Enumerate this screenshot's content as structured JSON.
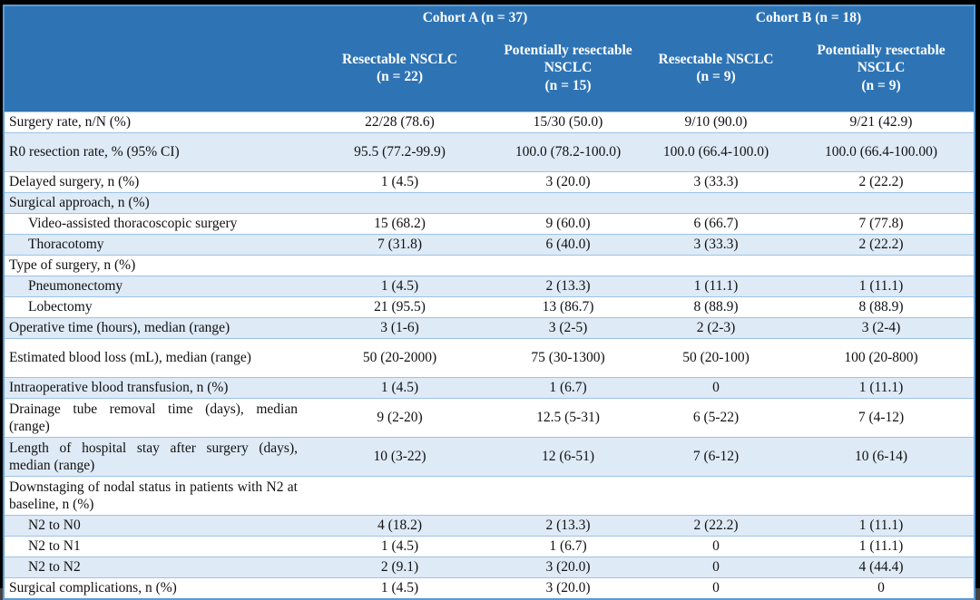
{
  "colors": {
    "header_bg": "#2E74B5",
    "row_alt_bg": "#DEEAF6",
    "row_bg": "#FFFFFF",
    "grid_line": "#9DC3E6",
    "outer_border": "#5B9BD5",
    "frame": "#000000",
    "header_text": "#FFFFFF",
    "body_text": "#111111"
  },
  "table": {
    "cohorts": [
      {
        "label": "Cohort A (n = 37)"
      },
      {
        "label": "Cohort B (n = 18)"
      }
    ],
    "columns": [
      {
        "name": "Resectable NSCLC",
        "n": "(n = 22)"
      },
      {
        "name": "Potentially resectable NSCLC",
        "n": "(n = 15)"
      },
      {
        "name": "Resectable NSCLC",
        "n": "(n = 9)"
      },
      {
        "name": "Potentially resectable NSCLC",
        "n": "(n = 9)"
      }
    ],
    "rows": [
      {
        "label": "Surgery rate, n/N (%)",
        "indent": false,
        "tall": false,
        "values": [
          "22/28 (78.6)",
          "15/30 (50.0)",
          "9/10 (90.0)",
          "9/21 (42.9)"
        ]
      },
      {
        "label": "R0 resection rate, % (95% CI)",
        "indent": false,
        "tall": true,
        "values": [
          "95.5 (77.2-99.9)",
          "100.0 (78.2-100.0)",
          "100.0 (66.4-100.0)",
          "100.0 (66.4-100.00)"
        ]
      },
      {
        "label": "Delayed surgery, n (%)",
        "indent": false,
        "tall": false,
        "values": [
          "1 (4.5)",
          "3 (20.0)",
          "3 (33.3)",
          "2 (22.2)"
        ]
      },
      {
        "label": "Surgical approach, n (%)",
        "indent": false,
        "tall": false,
        "values": [
          "",
          "",
          "",
          ""
        ]
      },
      {
        "label": "Video-assisted thoracoscopic surgery",
        "indent": true,
        "tall": false,
        "values": [
          "15 (68.2)",
          "9 (60.0)",
          "6 (66.7)",
          "7 (77.8)"
        ]
      },
      {
        "label": "Thoracotomy",
        "indent": true,
        "tall": false,
        "values": [
          "7 (31.8)",
          "6 (40.0)",
          "3 (33.3)",
          "2 (22.2)"
        ]
      },
      {
        "label": "Type of surgery, n (%)",
        "indent": false,
        "tall": false,
        "values": [
          "",
          "",
          "",
          ""
        ]
      },
      {
        "label": "Pneumonectomy",
        "indent": true,
        "tall": false,
        "values": [
          "1 (4.5)",
          "2 (13.3)",
          "1 (11.1)",
          "1 (11.1)"
        ]
      },
      {
        "label": "Lobectomy",
        "indent": true,
        "tall": false,
        "values": [
          "21 (95.5)",
          "13 (86.7)",
          "8 (88.9)",
          "8 (88.9)"
        ]
      },
      {
        "label": "Operative time (hours), median (range)",
        "indent": false,
        "tall": false,
        "values": [
          "3 (1-6)",
          "3 (2-5)",
          "2 (2-3)",
          "3 (2-4)"
        ]
      },
      {
        "label": "Estimated blood loss (mL), median (range)",
        "indent": false,
        "tall": true,
        "values": [
          "50 (20-2000)",
          "75 (30-1300)",
          "50 (20-100)",
          "100 (20-800)"
        ]
      },
      {
        "label": "Intraoperative blood transfusion, n (%)",
        "indent": false,
        "tall": false,
        "values": [
          "1 (4.5)",
          "1 (6.7)",
          "0",
          "1 (11.1)"
        ]
      },
      {
        "label": "Drainage tube removal time (days), median (range)",
        "indent": false,
        "tall": true,
        "values": [
          "9 (2-20)",
          "12.5 (5-31)",
          "6 (5-22)",
          "7 (4-12)"
        ]
      },
      {
        "label": "Length of hospital stay after surgery (days), median (range)",
        "indent": false,
        "tall": true,
        "values": [
          "10 (3-22)",
          "12 (6-51)",
          "7 (6-12)",
          "10 (6-14)"
        ]
      },
      {
        "label": "Downstaging of nodal status in patients with N2 at baseline, n (%)",
        "indent": false,
        "tall": true,
        "values": [
          "",
          "",
          "",
          ""
        ]
      },
      {
        "label": "N2 to N0",
        "indent": true,
        "tall": false,
        "values": [
          "4 (18.2)",
          "2 (13.3)",
          "2 (22.2)",
          "1 (11.1)"
        ]
      },
      {
        "label": "N2 to N1",
        "indent": true,
        "tall": false,
        "values": [
          "1 (4.5)",
          "1 (6.7)",
          "0",
          "1 (11.1)"
        ]
      },
      {
        "label": "N2 to N2",
        "indent": true,
        "tall": false,
        "values": [
          "2 (9.1)",
          "3 (20.0)",
          "0",
          "4 (44.4)"
        ]
      },
      {
        "label": "Surgical complications, n (%)",
        "indent": false,
        "tall": false,
        "values": [
          "1 (4.5)",
          "3 (20.0)",
          "0",
          "0"
        ]
      }
    ]
  }
}
